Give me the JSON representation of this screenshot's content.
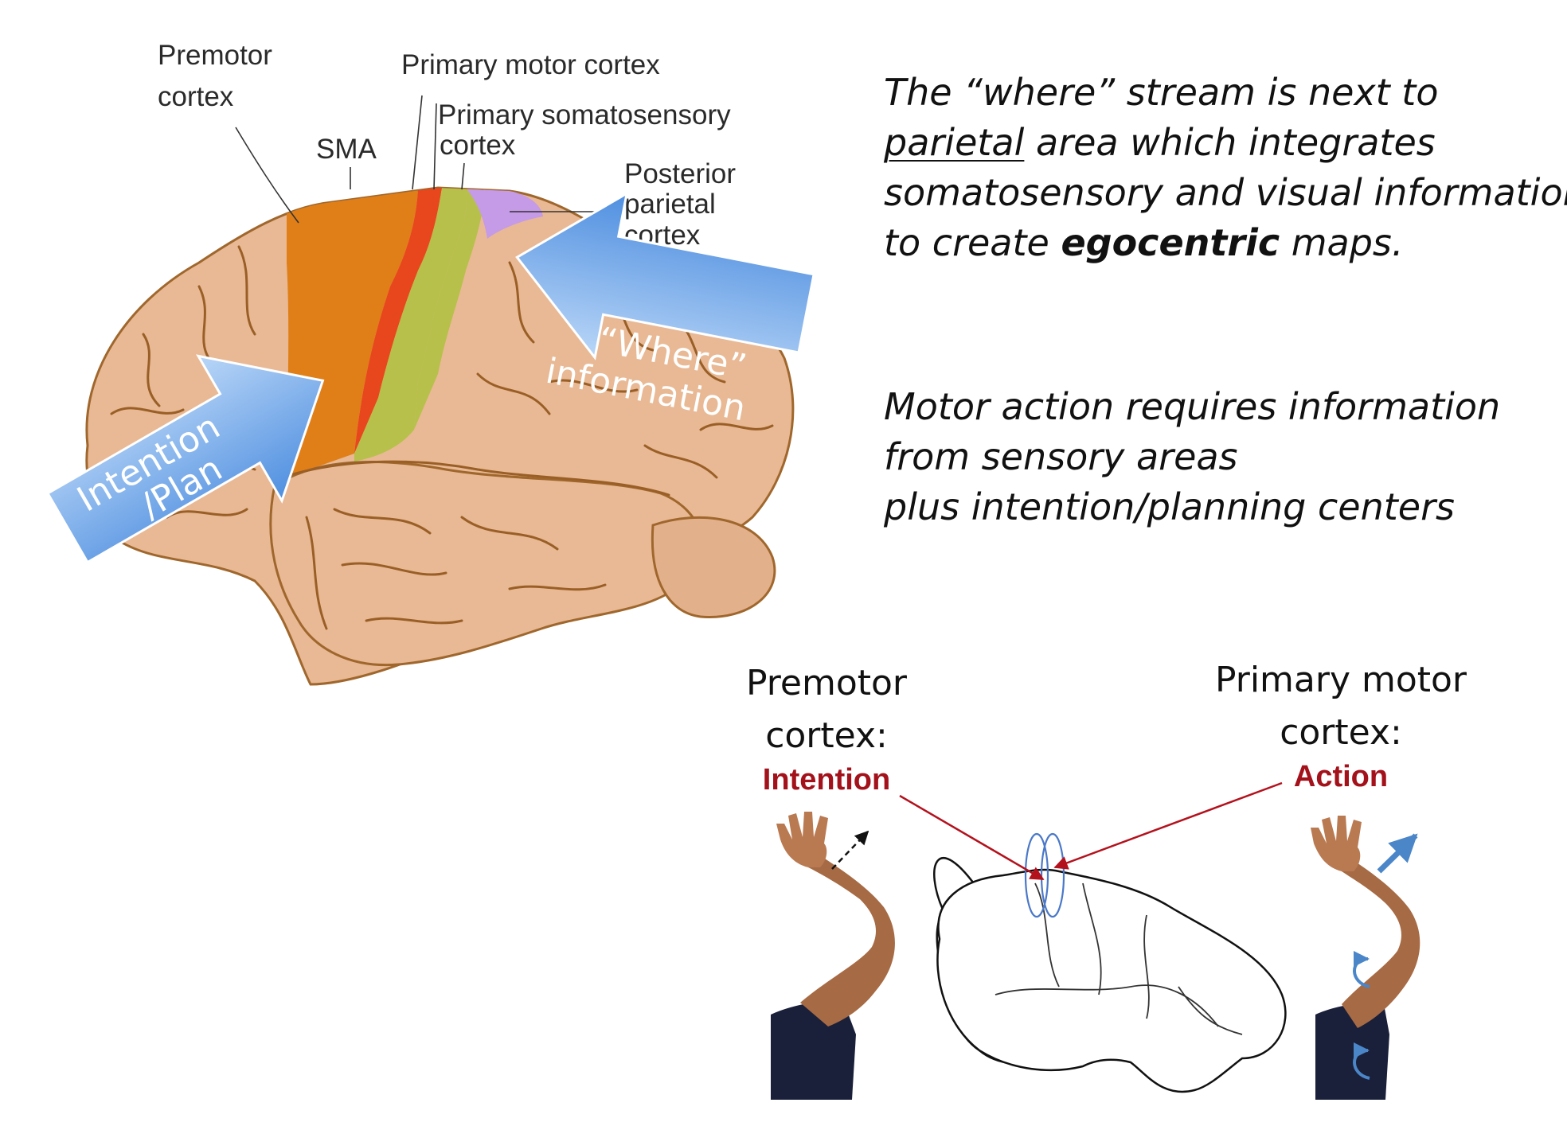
{
  "brain_diagram": {
    "labels": {
      "premotor": [
        "Premotor",
        "cortex"
      ],
      "primary_motor": "Primary motor cortex",
      "primary_somatosensory": [
        "Primary somatosensory",
        "cortex"
      ],
      "sma": "SMA",
      "posterior_parietal": [
        "Posterior",
        "parietal",
        "cortex"
      ]
    },
    "arrows": {
      "intention": [
        "Intention",
        "/Plan"
      ],
      "where": [
        "“Where”",
        "information"
      ]
    }
  },
  "text_block_1": {
    "line1": "The “where” stream is next to",
    "line2_underlined": "parietal",
    "line2_rest": " area which integrates",
    "line3": "somatosensory and visual information",
    "line4_before": "to create ",
    "line4_bold": "egocentric",
    "line4_after": " maps."
  },
  "text_block_2": {
    "lines": [
      "Motor action requires information",
      "from sensory areas",
      "plus intention/planning centers"
    ]
  },
  "bottom_figure": {
    "left_caption": {
      "line1": "Premotor",
      "line2": "cortex:",
      "role": "Intention"
    },
    "right_caption": {
      "line1": "Primary motor",
      "line2": "cortex:",
      "role": "Action"
    }
  },
  "colors": {
    "brain_tan": "#e8b994",
    "premotor_orange": "#e07f17",
    "primary_motor_red": "#e8461c",
    "somatosensory_green": "#b7c04a",
    "parietal_purple": "#c59ae6",
    "arrow_blue": "#6fa8e8",
    "accent_red": "#a3111b"
  }
}
